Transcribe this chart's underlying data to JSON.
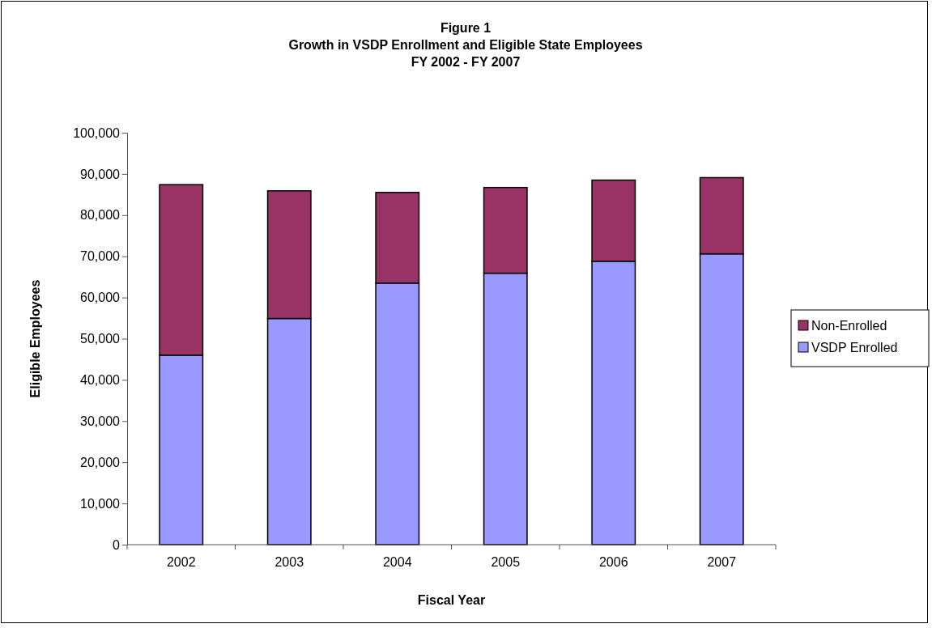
{
  "chart_data": {
    "type": "bar",
    "title": "Figure 1",
    "subtitle": "Growth in VSDP Enrollment and Eligible State Employees\nFY 2002 - FY 2007",
    "xlabel": "Fiscal Year",
    "ylabel": "Eligible Employees",
    "categories": [
      "2002",
      "2003",
      "2004",
      "2005",
      "2006",
      "2007"
    ],
    "stacked": true,
    "series": [
      {
        "name": "VSDP Enrolled",
        "color": "#9999ff",
        "values": [
          46000,
          54900,
          63500,
          65900,
          68800,
          70600
        ]
      },
      {
        "name": "Non-Enrolled",
        "color": "#993366",
        "values": [
          41400,
          31000,
          22000,
          20800,
          19700,
          18500
        ]
      }
    ],
    "ylim": [
      0,
      100000
    ],
    "yticks": [
      {
        "value": 0,
        "label": "0"
      },
      {
        "value": 10000,
        "label": "10,000"
      },
      {
        "value": 20000,
        "label": "20,000"
      },
      {
        "value": 30000,
        "label": "30,000"
      },
      {
        "value": 40000,
        "label": "40,000"
      },
      {
        "value": 50000,
        "label": "50,000"
      },
      {
        "value": 60000,
        "label": "60,000"
      },
      {
        "value": 70000,
        "label": "70,000"
      },
      {
        "value": 80000,
        "label": "80,000"
      },
      {
        "value": 90000,
        "label": "90,000"
      },
      {
        "value": 100000,
        "label": "100,000"
      }
    ],
    "grid": false,
    "legend": "right"
  }
}
